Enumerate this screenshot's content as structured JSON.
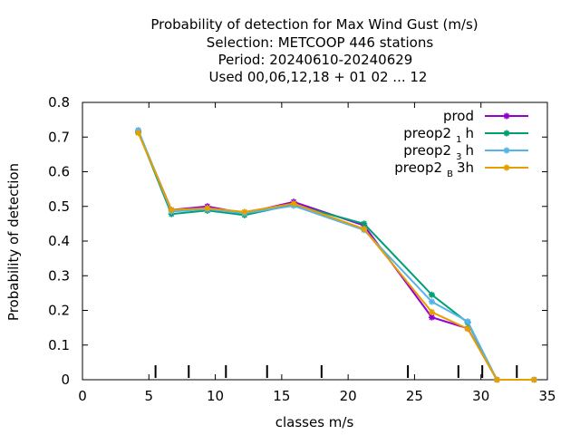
{
  "title_lines": [
    "Probability of detection  for Max Wind Gust (m/s)",
    "Selection: METCOOP    446 stations",
    "Period: 20240610-20240629",
    "Used  00,06,12,18 + 01 02 ... 12"
  ],
  "legend": [
    {
      "prefix": "prod",
      "sub": "",
      "suffix": ""
    },
    {
      "prefix": "preop2",
      "sub": "1",
      "suffix": "h"
    },
    {
      "prefix": "preop2",
      "sub": "3",
      "suffix": "h"
    },
    {
      "prefix": "preop2",
      "sub": "B",
      "suffix": "3h"
    }
  ],
  "chart_data": {
    "type": "line",
    "xlabel": "classes m/s",
    "ylabel": "Probability of detection",
    "xlim": [
      0,
      35
    ],
    "ylim": [
      0,
      0.8
    ],
    "xticks": [
      0,
      5,
      10,
      15,
      20,
      25,
      30,
      35
    ],
    "yticks": [
      0,
      0.1,
      0.2,
      0.3,
      0.4,
      0.5,
      0.6,
      0.7,
      0.8
    ],
    "ytick_labels": [
      "0",
      "0.1",
      "0.2",
      "0.3",
      "0.4",
      "0.5",
      "0.6",
      "0.7",
      "0.8"
    ],
    "class_boundaries": [
      5.5,
      8,
      10.8,
      13.9,
      18,
      24.5,
      28.3,
      30.1,
      32.7
    ],
    "grid": false,
    "legend_position": "top-right",
    "series": [
      {
        "name": "prod",
        "color": "#9400d3",
        "x": [
          4.2,
          6.7,
          9.4,
          12.2,
          15.9,
          21.2,
          26.3,
          29.0,
          31.2,
          34.0
        ],
        "y": [
          0.715,
          0.49,
          0.5,
          0.48,
          0.513,
          0.445,
          0.18,
          0.148,
          0.0,
          0.0
        ]
      },
      {
        "name": "preop2 1h",
        "color": "#009e73",
        "x": [
          4.2,
          6.7,
          9.4,
          12.2,
          15.9,
          21.2,
          26.3,
          29.0,
          31.2,
          34.0
        ],
        "y": [
          0.715,
          0.478,
          0.488,
          0.475,
          0.505,
          0.45,
          0.245,
          0.165,
          0.0,
          0.0
        ]
      },
      {
        "name": "preop2 3h",
        "color": "#56b4e9",
        "x": [
          4.2,
          6.7,
          9.4,
          12.2,
          15.9,
          21.2,
          26.3,
          29.0,
          31.2,
          34.0
        ],
        "y": [
          0.72,
          0.485,
          0.492,
          0.48,
          0.502,
          0.432,
          0.225,
          0.168,
          0.0,
          0.0
        ]
      },
      {
        "name": "preop2 B 3h",
        "color": "#e69f00",
        "x": [
          4.2,
          6.7,
          9.4,
          12.2,
          15.9,
          21.2,
          26.3,
          29.0,
          31.2,
          34.0
        ],
        "y": [
          0.712,
          0.49,
          0.495,
          0.484,
          0.508,
          0.435,
          0.195,
          0.147,
          0.0,
          0.0
        ]
      }
    ]
  }
}
